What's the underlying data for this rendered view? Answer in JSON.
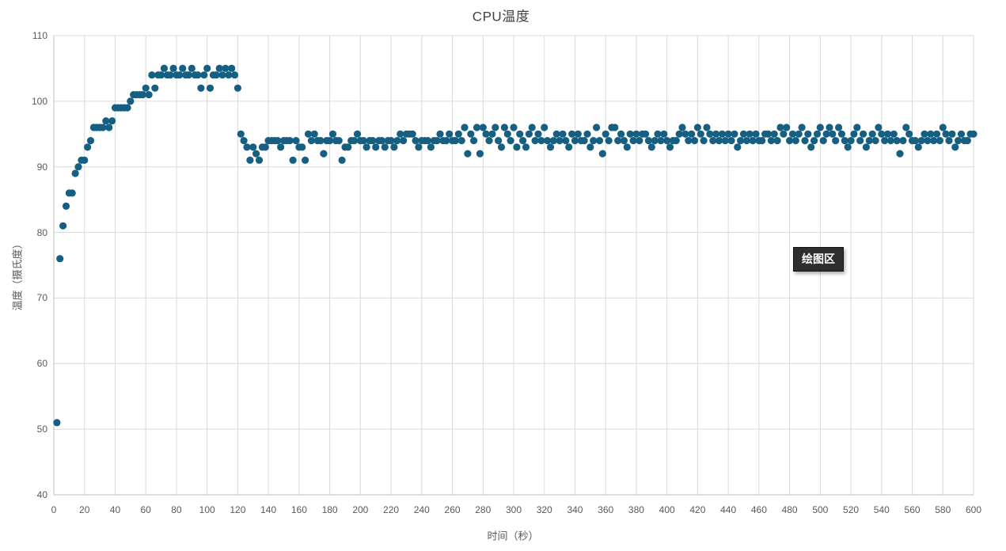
{
  "tooltip": {
    "label": "绘图区",
    "bg": "#2e2e2e",
    "text_color": "#ffffff"
  },
  "chart_data": {
    "type": "scatter",
    "title": "CPU温度",
    "xlabel": "时间（秒）",
    "ylabel": "温度（摄氏度）",
    "xlim": [
      0,
      600
    ],
    "ylim": [
      40,
      110
    ],
    "x_tick_step": 20,
    "y_tick_step": 10,
    "grid": true,
    "legend": "none",
    "series": [
      {
        "name": "CPU温度",
        "color": "#156082",
        "marker": "circle",
        "t_start": 2,
        "t_step": 2,
        "values": [
          51,
          76,
          81,
          84,
          86,
          86,
          89,
          90,
          91,
          91,
          93,
          94,
          96,
          96,
          96,
          96,
          97,
          96,
          97,
          99,
          99,
          99,
          99,
          99,
          100,
          101,
          101,
          101,
          101,
          102,
          101,
          104,
          102,
          104,
          104,
          105,
          104,
          104,
          105,
          104,
          104,
          105,
          104,
          104,
          105,
          104,
          104,
          102,
          104,
          105,
          102,
          104,
          104,
          105,
          104,
          105,
          104,
          105,
          104,
          102,
          95,
          94,
          93,
          91,
          93,
          92,
          91,
          93,
          93,
          94,
          94,
          94,
          94,
          93,
          94,
          94,
          94,
          91,
          94,
          93,
          93,
          91,
          95,
          94,
          95,
          94,
          94,
          92,
          94,
          94,
          95,
          94,
          94,
          91,
          93,
          93,
          94,
          94,
          95,
          94,
          94,
          93,
          94,
          94,
          93,
          94,
          94,
          93,
          94,
          94,
          93,
          94,
          95,
          94,
          95,
          95,
          95,
          94,
          93,
          94,
          94,
          94,
          93,
          94,
          94,
          95,
          94,
          94,
          95,
          94,
          94,
          95,
          94,
          96,
          92,
          95,
          94,
          96,
          92,
          96,
          95,
          94,
          95,
          96,
          94,
          93,
          96,
          95,
          94,
          96,
          93,
          95,
          94,
          93,
          95,
          96,
          94,
          95,
          94,
          96,
          94,
          93,
          94,
          95,
          94,
          95,
          94,
          93,
          95,
          94,
          95,
          94,
          94,
          95,
          93,
          94,
          96,
          94,
          92,
          95,
          94,
          96,
          96,
          94,
          95,
          94,
          93,
          95,
          94,
          95,
          94,
          95,
          95,
          94,
          93,
          94,
          95,
          94,
          95,
          94,
          93,
          94,
          94,
          95,
          96,
          95,
          94,
          95,
          94,
          96,
          95,
          94,
          96,
          95,
          94,
          95,
          94,
          95,
          94,
          95,
          94,
          95,
          93,
          94,
          95,
          94,
          95,
          94,
          95,
          94,
          94,
          95,
          95,
          94,
          95,
          94,
          96,
          95,
          96,
          94,
          95,
          94,
          95,
          96,
          94,
          95,
          93,
          94,
          95,
          96,
          94,
          95,
          96,
          95,
          94,
          96,
          95,
          94,
          93,
          94,
          95,
          96,
          94,
          95,
          93,
          94,
          95,
          94,
          96,
          95,
          94,
          95,
          94,
          95,
          94,
          92,
          94,
          96,
          95,
          94,
          94,
          93,
          94,
          95,
          94,
          95,
          94,
          95,
          94,
          96,
          95,
          94,
          95,
          93,
          94,
          95,
          94,
          94,
          95,
          95
        ]
      }
    ]
  }
}
